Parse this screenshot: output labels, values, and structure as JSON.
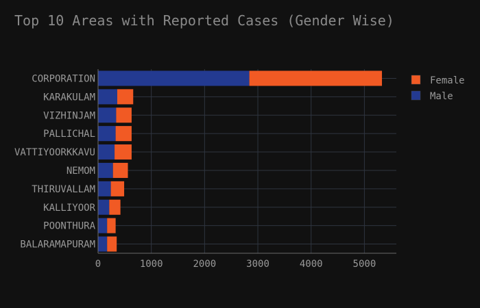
{
  "chart_data": {
    "type": "bar",
    "orientation": "horizontal",
    "barmode": "stack",
    "title": "Top 10 Areas with Reported Cases (Gender Wise)",
    "categories": [
      "CORPORATION",
      "KARAKULAM",
      "VIZHINJAM",
      "PALLICHAL",
      "VATTIYOORKKAVU",
      "NEMOM",
      "THIRUVALLAM",
      "KALLIYOOR",
      "POONTHURA",
      "BALARAMAPURAM"
    ],
    "series": [
      {
        "name": "Male",
        "color": "#233a91",
        "values": [
          2840,
          360,
          340,
          330,
          310,
          280,
          240,
          210,
          170,
          170
        ]
      },
      {
        "name": "Female",
        "color": "#f15a24",
        "values": [
          2490,
          300,
          290,
          300,
          320,
          280,
          250,
          210,
          160,
          180
        ]
      }
    ],
    "xlim": [
      0,
      5600
    ],
    "xticks": [
      0,
      1000,
      2000,
      3000,
      4000,
      5000
    ],
    "legend_order": [
      "Female",
      "Male"
    ],
    "legend_position": "top-right",
    "grid": true,
    "xlabel": "",
    "ylabel": ""
  }
}
